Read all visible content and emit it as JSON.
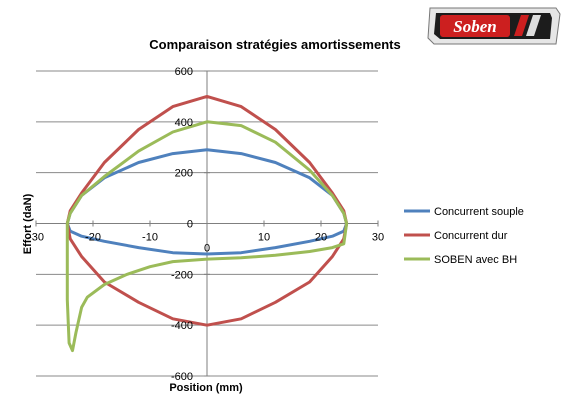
{
  "logo": {
    "text": "Soben"
  },
  "chart_data": {
    "type": "line",
    "title": "Comparaison stratégies amortissements",
    "xlabel": "Position (mm)",
    "ylabel": "Effort (daN)",
    "xlim": [
      -30,
      30
    ],
    "ylim": [
      -600,
      600
    ],
    "xticks": [
      -30,
      -20,
      -10,
      0,
      10,
      20,
      30
    ],
    "yticks": [
      -600,
      -400,
      -200,
      0,
      200,
      400,
      600
    ],
    "grid": true,
    "legend_position": "right",
    "series": [
      {
        "name": "Concurrent souple",
        "color": "#4f81bd",
        "points": [
          [
            -24.5,
            0
          ],
          [
            -24,
            40
          ],
          [
            -22,
            110
          ],
          [
            -18,
            180
          ],
          [
            -12,
            240
          ],
          [
            -6,
            275
          ],
          [
            0,
            290
          ],
          [
            6,
            275
          ],
          [
            12,
            240
          ],
          [
            18,
            180
          ],
          [
            22,
            110
          ],
          [
            24,
            40
          ],
          [
            24.5,
            0
          ],
          [
            24,
            -30
          ],
          [
            22,
            -50
          ],
          [
            18,
            -70
          ],
          [
            12,
            -95
          ],
          [
            6,
            -115
          ],
          [
            0,
            -120
          ],
          [
            -6,
            -115
          ],
          [
            -12,
            -95
          ],
          [
            -18,
            -70
          ],
          [
            -22,
            -50
          ],
          [
            -24,
            -30
          ],
          [
            -24.5,
            0
          ]
        ]
      },
      {
        "name": "Concurrent dur",
        "color": "#c0504d",
        "points": [
          [
            -24.5,
            0
          ],
          [
            -24,
            50
          ],
          [
            -22,
            120
          ],
          [
            -18,
            240
          ],
          [
            -12,
            370
          ],
          [
            -6,
            460
          ],
          [
            0,
            500
          ],
          [
            6,
            460
          ],
          [
            12,
            370
          ],
          [
            18,
            240
          ],
          [
            22,
            120
          ],
          [
            24,
            50
          ],
          [
            24.5,
            0
          ],
          [
            24,
            -60
          ],
          [
            22,
            -130
          ],
          [
            18,
            -230
          ],
          [
            12,
            -310
          ],
          [
            6,
            -375
          ],
          [
            0,
            -400
          ],
          [
            -6,
            -375
          ],
          [
            -12,
            -310
          ],
          [
            -18,
            -230
          ],
          [
            -22,
            -130
          ],
          [
            -24,
            -60
          ],
          [
            -24.5,
            0
          ]
        ]
      },
      {
        "name": "SOBEN avec BH",
        "color": "#9bbb59",
        "points": [
          [
            -24.5,
            0
          ],
          [
            -24,
            40
          ],
          [
            -22,
            110
          ],
          [
            -18,
            185
          ],
          [
            -12,
            285
          ],
          [
            -6,
            360
          ],
          [
            0,
            400
          ],
          [
            6,
            385
          ],
          [
            12,
            320
          ],
          [
            18,
            210
          ],
          [
            22,
            110
          ],
          [
            24,
            40
          ],
          [
            24.5,
            0
          ],
          [
            24,
            -80
          ],
          [
            22,
            -95
          ],
          [
            18,
            -110
          ],
          [
            12,
            -125
          ],
          [
            6,
            -135
          ],
          [
            0,
            -140
          ],
          [
            -6,
            -150
          ],
          [
            -10,
            -170
          ],
          [
            -14,
            -200
          ],
          [
            -18,
            -240
          ],
          [
            -21,
            -290
          ],
          [
            -22,
            -330
          ],
          [
            -23,
            -430
          ],
          [
            -23.6,
            -500
          ],
          [
            -24.2,
            -470
          ],
          [
            -24.5,
            -300
          ],
          [
            -24.5,
            0
          ]
        ]
      }
    ]
  }
}
